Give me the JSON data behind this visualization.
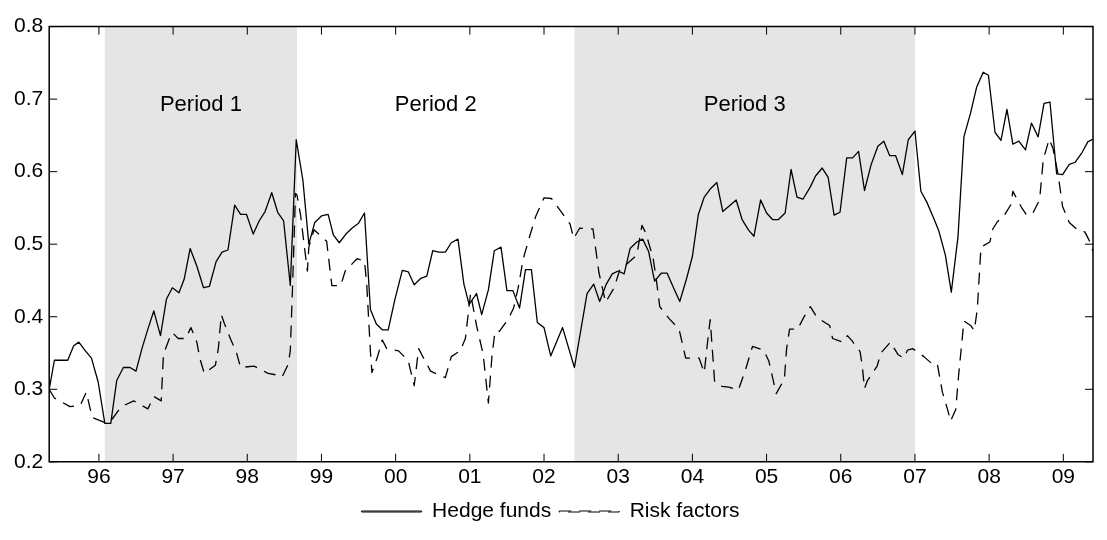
{
  "chart_data": {
    "type": "line",
    "xlim": [
      1995.33,
      2009.4
    ],
    "ylim": [
      0.2,
      0.8
    ],
    "xticks": [
      {
        "value": 1996,
        "label": "96"
      },
      {
        "value": 1997,
        "label": "97"
      },
      {
        "value": 1998,
        "label": "98"
      },
      {
        "value": 1999,
        "label": "99"
      },
      {
        "value": 2000,
        "label": "00"
      },
      {
        "value": 2001,
        "label": "01"
      },
      {
        "value": 2002,
        "label": "02"
      },
      {
        "value": 2003,
        "label": "03"
      },
      {
        "value": 2004,
        "label": "04"
      },
      {
        "value": 2005,
        "label": "05"
      },
      {
        "value": 2006,
        "label": "06"
      },
      {
        "value": 2007,
        "label": "07"
      },
      {
        "value": 2008,
        "label": "08"
      },
      {
        "value": 2009,
        "label": "09"
      }
    ],
    "yticks": [
      0.2,
      0.3,
      0.4,
      0.5,
      0.6,
      0.7,
      0.8
    ],
    "grid": false,
    "legend": "bottom",
    "marker": "none",
    "bands": [
      {
        "axis": "x",
        "from": 1996.08,
        "to": 1998.67,
        "color": "#e5e5e5",
        "label": "Period 1"
      },
      {
        "axis": "x",
        "from": 2002.41,
        "to": 2007.0,
        "color": "#e5e5e5",
        "label": "Period 3"
      }
    ],
    "annotations": [
      "Period 2"
    ],
    "series": [
      {
        "name": "Hedge funds",
        "color": "#000000",
        "line_style": "solid",
        "x": [
          1995.33,
          1995.4,
          1995.48,
          1995.58,
          1995.66,
          1995.73,
          1995.81,
          1995.9,
          1995.99,
          1996.08,
          1996.16,
          1996.24,
          1996.33,
          1996.42,
          1996.5,
          1996.58,
          1996.66,
          1996.74,
          1996.83,
          1996.91,
          1996.99,
          1997.08,
          1997.15,
          1997.23,
          1997.32,
          1997.41,
          1997.49,
          1997.58,
          1997.66,
          1997.74,
          1997.83,
          1997.91,
          1997.99,
          1998.08,
          1998.16,
          1998.24,
          1998.33,
          1998.41,
          1998.49,
          1998.58,
          1998.66,
          1998.75,
          1998.83,
          1998.91,
          1999.0,
          1999.09,
          1999.16,
          1999.24,
          1999.33,
          1999.41,
          1999.5,
          1999.58,
          1999.66,
          1999.74,
          1999.82,
          1999.9,
          1999.99,
          2000.09,
          2000.17,
          2000.25,
          2000.34,
          2000.42,
          2000.5,
          2000.58,
          2000.67,
          2000.75,
          2000.84,
          2000.92,
          2000.99,
          2001.09,
          2001.16,
          2001.25,
          2001.33,
          2001.42,
          2001.5,
          2001.58,
          2001.67,
          2001.75,
          2001.83,
          2001.91,
          2002.0,
          2002.09,
          2002.25,
          2002.41,
          2002.58,
          2002.67,
          2002.75,
          2002.84,
          2002.92,
          2003.0,
          2003.08,
          2003.16,
          2003.25,
          2003.33,
          2003.41,
          2003.49,
          2003.58,
          2003.66,
          2003.75,
          2003.83,
          2003.92,
          2004.0,
          2004.08,
          2004.16,
          2004.24,
          2004.33,
          2004.41,
          2004.59,
          2004.67,
          2004.76,
          2004.83,
          2004.92,
          2005.0,
          2005.08,
          2005.16,
          2005.25,
          2005.33,
          2005.41,
          2005.49,
          2005.59,
          2005.66,
          2005.75,
          2005.83,
          2005.91,
          2005.99,
          2006.08,
          2006.16,
          2006.24,
          2006.32,
          2006.41,
          2006.5,
          2006.58,
          2006.66,
          2006.74,
          2006.83,
          2006.91,
          2007.0,
          2007.08,
          2007.16,
          2007.24,
          2007.32,
          2007.41,
          2007.49,
          2007.58,
          2007.66,
          2007.75,
          2007.83,
          2007.92,
          2007.99,
          2008.08,
          2008.16,
          2008.24,
          2008.32,
          2008.4,
          2008.49,
          2008.57,
          2008.66,
          2008.74,
          2008.82,
          2008.91,
          2008.99,
          2009.08,
          2009.16,
          2009.25,
          2009.33,
          2009.4
        ],
        "values": [
          0.3,
          0.34,
          0.34,
          0.34,
          0.36,
          0.365,
          0.354,
          0.343,
          0.31,
          0.253,
          0.253,
          0.312,
          0.33,
          0.33,
          0.325,
          0.356,
          0.383,
          0.408,
          0.374,
          0.424,
          0.44,
          0.433,
          0.452,
          0.494,
          0.47,
          0.44,
          0.442,
          0.476,
          0.489,
          0.492,
          0.554,
          0.541,
          0.541,
          0.514,
          0.532,
          0.545,
          0.571,
          0.544,
          0.532,
          0.443,
          0.644,
          0.588,
          0.5,
          0.53,
          0.539,
          0.541,
          0.513,
          0.502,
          0.514,
          0.522,
          0.529,
          0.543,
          0.41,
          0.39,
          0.382,
          0.382,
          0.424,
          0.464,
          0.462,
          0.444,
          0.453,
          0.456,
          0.491,
          0.489,
          0.489,
          0.502,
          0.507,
          0.445,
          0.417,
          0.432,
          0.403,
          0.437,
          0.491,
          0.496,
          0.436,
          0.436,
          0.412,
          0.465,
          0.465,
          0.392,
          0.385,
          0.346,
          0.385,
          0.33,
          0.432,
          0.445,
          0.421,
          0.445,
          0.459,
          0.463,
          0.459,
          0.494,
          0.503,
          0.507,
          0.49,
          0.449,
          0.46,
          0.46,
          0.439,
          0.421,
          0.452,
          0.483,
          0.541,
          0.565,
          0.576,
          0.585,
          0.545,
          0.561,
          0.534,
          0.519,
          0.511,
          0.561,
          0.543,
          0.534,
          0.534,
          0.543,
          0.603,
          0.565,
          0.562,
          0.579,
          0.594,
          0.605,
          0.592,
          0.54,
          0.544,
          0.619,
          0.619,
          0.628,
          0.574,
          0.61,
          0.635,
          0.642,
          0.622,
          0.622,
          0.596,
          0.644,
          0.656,
          0.573,
          0.558,
          0.539,
          0.519,
          0.485,
          0.434,
          0.51,
          0.648,
          0.681,
          0.716,
          0.737,
          0.733,
          0.654,
          0.643,
          0.686,
          0.638,
          0.642,
          0.63,
          0.667,
          0.648,
          0.694,
          0.696,
          0.597,
          0.596,
          0.61,
          0.613,
          0.626,
          0.641,
          0.645
        ]
      },
      {
        "name": "Risk factors",
        "color": "#000000",
        "line_style": "dashed",
        "x": [
          1995.33,
          1995.4,
          1995.61,
          1995.75,
          1995.83,
          1995.91,
          1996.08,
          1996.18,
          1996.3,
          1996.47,
          1996.66,
          1996.74,
          1996.84,
          1996.87,
          1996.95,
          1996.99,
          1997.07,
          1997.17,
          1997.24,
          1997.32,
          1997.36,
          1997.42,
          1997.57,
          1997.61,
          1997.65,
          1997.69,
          1997.78,
          1997.85,
          1997.91,
          1998.09,
          1998.28,
          1998.38,
          1998.47,
          1998.55,
          1998.58,
          1998.61,
          1998.65,
          1998.67,
          1998.72,
          1998.76,
          1998.81,
          1998.83,
          1998.9,
          1999.07,
          1999.14,
          1999.26,
          1999.32,
          1999.48,
          1999.58,
          1999.61,
          1999.66,
          1999.68,
          1999.75,
          1999.82,
          1999.88,
          2000.04,
          2000.17,
          2000.25,
          2000.31,
          2000.47,
          2000.67,
          2000.75,
          2000.87,
          2000.94,
          2001.01,
          2001.09,
          2001.18,
          2001.25,
          2001.3,
          2001.34,
          2001.4,
          2001.52,
          2001.59,
          2001.65,
          2001.72,
          2001.81,
          2001.89,
          2002.0,
          2002.1,
          2002.23,
          2002.35,
          2002.4,
          2002.48,
          2002.66,
          2002.74,
          2002.83,
          2002.94,
          2003.02,
          2003.25,
          2003.32,
          2003.37,
          2003.47,
          2003.51,
          2003.56,
          2003.69,
          2003.82,
          2003.91,
          2004.09,
          2004.16,
          2004.2,
          2004.24,
          2004.3,
          2004.4,
          2004.49,
          2004.62,
          2004.71,
          2004.81,
          2004.96,
          2005.03,
          2005.13,
          2005.24,
          2005.27,
          2005.31,
          2005.42,
          2005.5,
          2005.59,
          2005.68,
          2005.85,
          2005.89,
          2006.03,
          2006.09,
          2006.15,
          2006.26,
          2006.29,
          2006.32,
          2006.36,
          2006.49,
          2006.54,
          2006.67,
          2006.77,
          2006.85,
          2006.9,
          2006.97,
          2007.12,
          2007.22,
          2007.3,
          2007.37,
          2007.44,
          2007.48,
          2007.55,
          2007.59,
          2007.66,
          2007.75,
          2007.8,
          2007.84,
          2007.89,
          2008.01,
          2008.05,
          2008.11,
          2008.2,
          2008.29,
          2008.32,
          2008.44,
          2008.5,
          2008.58,
          2008.68,
          2008.73,
          2008.81,
          2008.86,
          2008.93,
          2008.99,
          2009.08,
          2009.2,
          2009.29,
          2009.36,
          2009.4
        ],
        "values": [
          0.3,
          0.288,
          0.276,
          0.278,
          0.296,
          0.261,
          0.254,
          0.259,
          0.276,
          0.284,
          0.273,
          0.29,
          0.284,
          0.348,
          0.37,
          0.378,
          0.37,
          0.37,
          0.385,
          0.365,
          0.343,
          0.322,
          0.333,
          0.356,
          0.403,
          0.391,
          0.368,
          0.352,
          0.33,
          0.332,
          0.322,
          0.32,
          0.317,
          0.334,
          0.353,
          0.441,
          0.57,
          0.568,
          0.539,
          0.505,
          0.463,
          0.496,
          0.52,
          0.504,
          0.443,
          0.443,
          0.463,
          0.48,
          0.477,
          0.445,
          0.352,
          0.323,
          0.343,
          0.368,
          0.356,
          0.353,
          0.339,
          0.305,
          0.356,
          0.325,
          0.316,
          0.345,
          0.353,
          0.37,
          0.432,
          0.388,
          0.348,
          0.281,
          0.348,
          0.38,
          0.38,
          0.397,
          0.412,
          0.439,
          0.48,
          0.512,
          0.539,
          0.564,
          0.563,
          0.545,
          0.528,
          0.508,
          0.522,
          0.521,
          0.461,
          0.42,
          0.439,
          0.464,
          0.485,
          0.526,
          0.516,
          0.481,
          0.454,
          0.414,
          0.397,
          0.383,
          0.343,
          0.343,
          0.323,
          0.361,
          0.396,
          0.31,
          0.304,
          0.303,
          0.299,
          0.325,
          0.359,
          0.354,
          0.339,
          0.294,
          0.314,
          0.356,
          0.383,
          0.383,
          0.399,
          0.414,
          0.399,
          0.388,
          0.37,
          0.365,
          0.374,
          0.367,
          0.352,
          0.332,
          0.301,
          0.312,
          0.332,
          0.35,
          0.365,
          0.348,
          0.343,
          0.354,
          0.356,
          0.345,
          0.336,
          0.336,
          0.296,
          0.272,
          0.256,
          0.272,
          0.321,
          0.394,
          0.388,
          0.381,
          0.41,
          0.496,
          0.503,
          0.521,
          0.531,
          0.539,
          0.554,
          0.573,
          0.55,
          0.541,
          0.541,
          0.561,
          0.617,
          0.645,
          0.632,
          0.596,
          0.552,
          0.53,
          0.519,
          0.517,
          0.503,
          0.49
        ]
      }
    ]
  }
}
